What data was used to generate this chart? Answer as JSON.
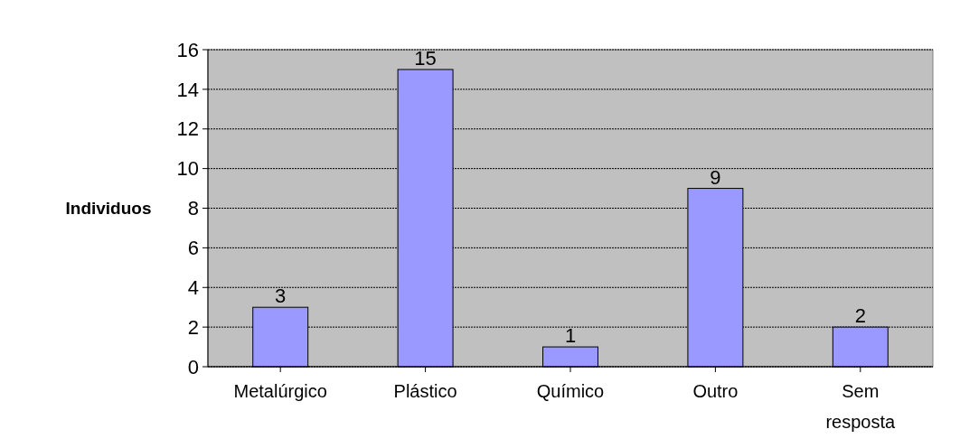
{
  "chart_data": {
    "type": "bar",
    "ylabel": "Individuos",
    "categories": [
      "Metalúrgico",
      "Plástico",
      "Químico",
      "Outro",
      "Sem resposta"
    ],
    "values": [
      3,
      15,
      1,
      9,
      2
    ],
    "color": "#9999ff",
    "ylim": [
      0,
      16
    ],
    "yticks": [
      0,
      2,
      4,
      6,
      8,
      10,
      12,
      14,
      16
    ],
    "grid": "y",
    "data_labels": true
  }
}
